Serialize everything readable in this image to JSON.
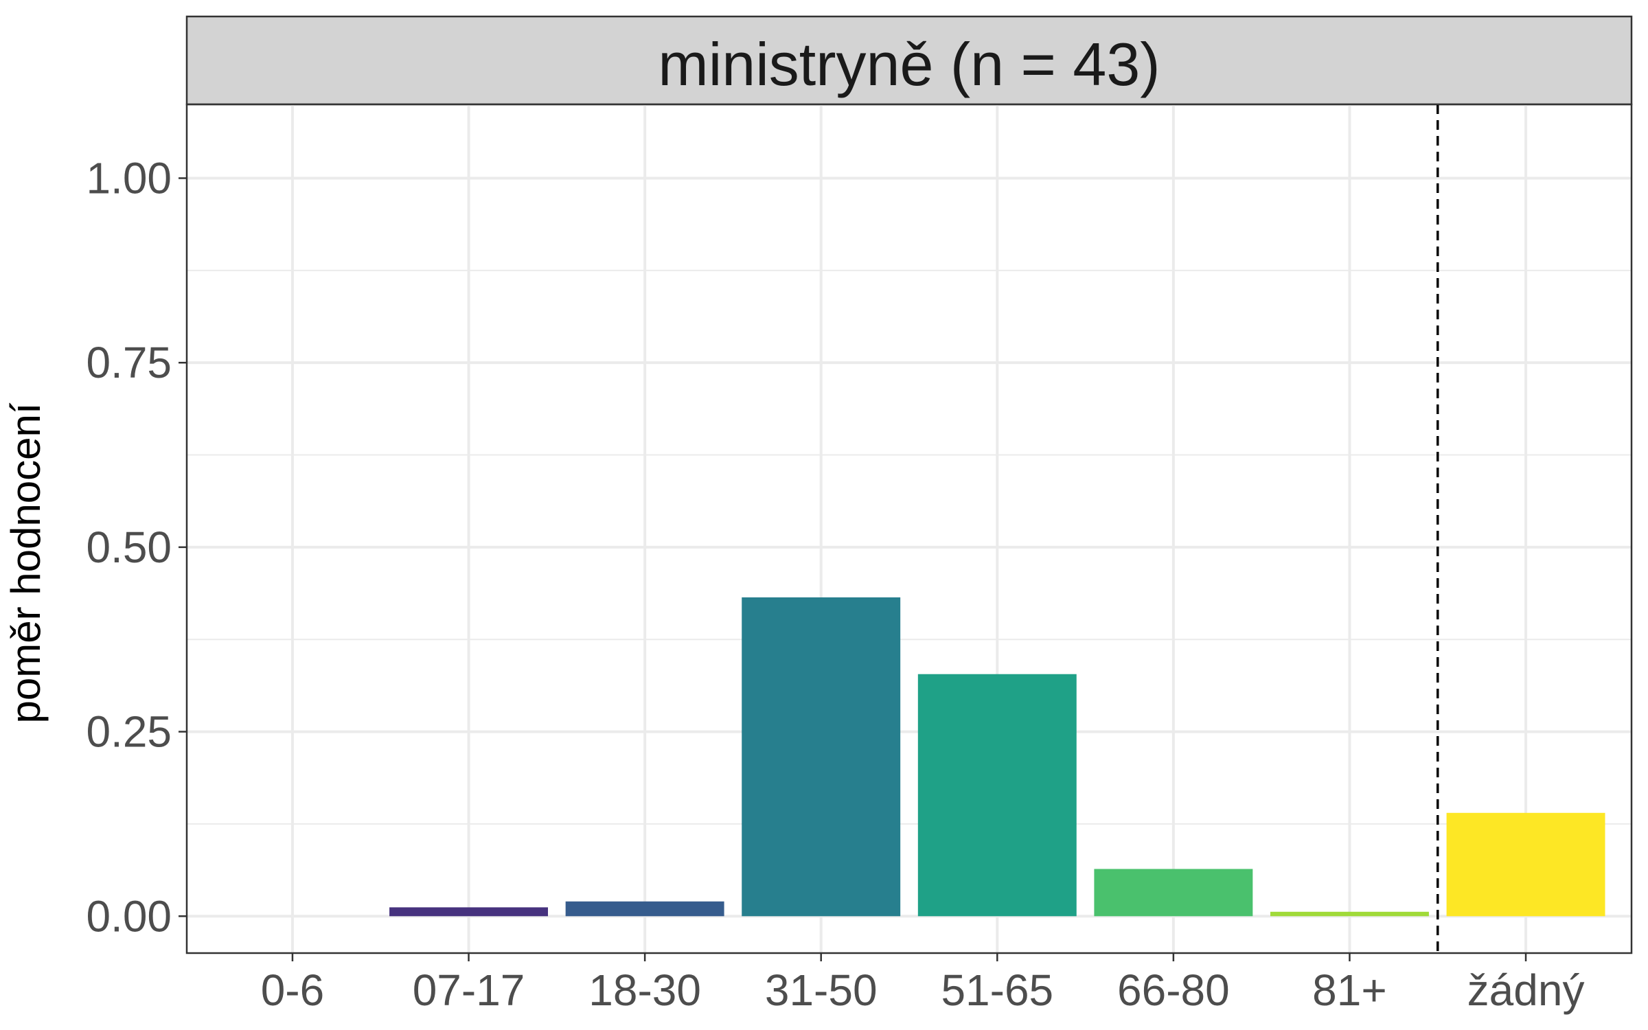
{
  "chart_data": {
    "type": "bar",
    "title": "ministryně (n = 43)",
    "xlabel": "",
    "ylabel": "poměr hodnocení",
    "categories": [
      "0-6",
      "07-17",
      "18-30",
      "31-50",
      "51-65",
      "66-80",
      "81+",
      "žádný"
    ],
    "values": [
      0.0,
      0.012,
      0.02,
      0.432,
      0.328,
      0.064,
      0.006,
      0.14
    ],
    "colors": [
      "#440154",
      "#46327e",
      "#365c8d",
      "#277f8e",
      "#1fa187",
      "#4ac16d",
      "#a0da39",
      "#fde725"
    ],
    "ylim": [
      -0.05,
      1.1
    ],
    "yticks": [
      0.0,
      0.25,
      0.5,
      0.75,
      1.0
    ],
    "ytick_labels": [
      "0.00",
      "0.25",
      "0.50",
      "0.75",
      "1.00"
    ],
    "grid": true,
    "reference_line": {
      "after_category": "81+",
      "style": "dashed",
      "color": "#000000"
    },
    "legend": "none",
    "strip_color": "#d3d3d3"
  }
}
